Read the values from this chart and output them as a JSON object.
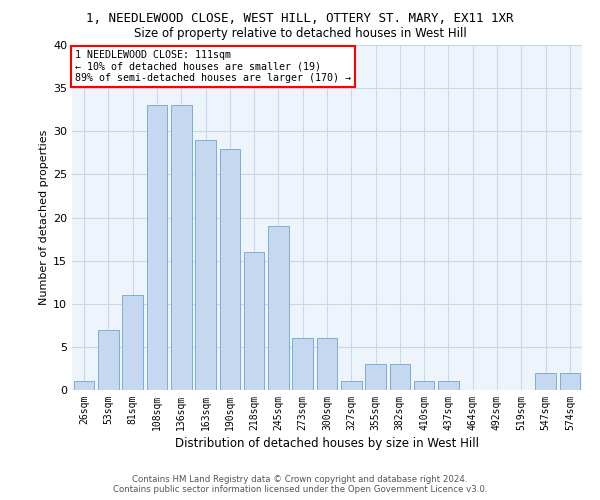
{
  "title": "1, NEEDLEWOOD CLOSE, WEST HILL, OTTERY ST. MARY, EX11 1XR",
  "subtitle": "Size of property relative to detached houses in West Hill",
  "xlabel": "Distribution of detached houses by size in West Hill",
  "ylabel": "Number of detached properties",
  "categories": [
    "26sqm",
    "53sqm",
    "81sqm",
    "108sqm",
    "136sqm",
    "163sqm",
    "190sqm",
    "218sqm",
    "245sqm",
    "273sqm",
    "300sqm",
    "327sqm",
    "355sqm",
    "382sqm",
    "410sqm",
    "437sqm",
    "464sqm",
    "492sqm",
    "519sqm",
    "547sqm",
    "574sqm"
  ],
  "values": [
    1,
    7,
    11,
    33,
    33,
    29,
    28,
    16,
    19,
    6,
    6,
    1,
    3,
    3,
    1,
    1,
    0,
    0,
    0,
    2,
    2
  ],
  "bar_color": "#c5d8f0",
  "bar_edge_color": "#7aaedc",
  "grid_color": "#c8d8e8",
  "background_color": "#eef4fb",
  "annotation_text": "1 NEEDLEWOOD CLOSE: 111sqm\n← 10% of detached houses are smaller (19)\n89% of semi-detached houses are larger (170) →",
  "annotation_box_color": "white",
  "annotation_box_edge_color": "red",
  "ylim": [
    0,
    40
  ],
  "yticks": [
    0,
    5,
    10,
    15,
    20,
    25,
    30,
    35,
    40
  ],
  "footer_line1": "Contains HM Land Registry data © Crown copyright and database right 2024.",
  "footer_line2": "Contains public sector information licensed under the Open Government Licence v3.0."
}
